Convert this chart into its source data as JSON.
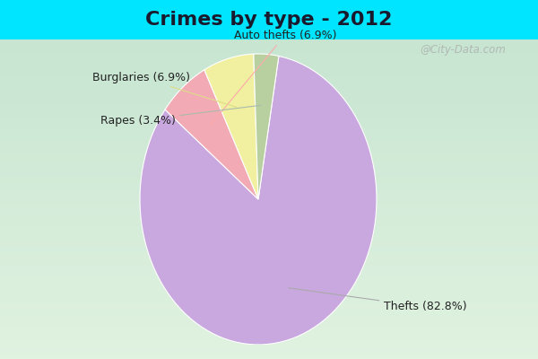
{
  "title": "Crimes by type - 2012",
  "slices": [
    {
      "label": "Thefts (82.8%)",
      "value": 82.8,
      "color": "#c9a8e0"
    },
    {
      "label": "Auto thefts (6.9%)",
      "value": 6.9,
      "color": "#f2aab5"
    },
    {
      "label": "Burglaries (6.9%)",
      "value": 6.9,
      "color": "#f0f0a0"
    },
    {
      "label": "Rapes (3.4%)",
      "value": 3.4,
      "color": "#b8cfa0"
    }
  ],
  "background_cyan": "#00e5ff",
  "background_green_top": "#c8e8d0",
  "background_green_bot": "#d8eee0",
  "title_fontsize": 16,
  "label_fontsize": 9,
  "title_color": "#1a1a2e",
  "watermark": "@City-Data.com"
}
